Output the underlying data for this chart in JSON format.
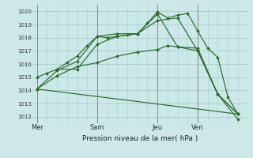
{
  "title": "",
  "xlabel": "Pression niveau de la mer( hPa )",
  "background_color": "#cce8e8",
  "grid_color": "#aacccc",
  "vline_color": "#888888",
  "line_color": "#2d6a2d",
  "ylim": [
    1011.5,
    1020.5
  ],
  "yticks": [
    1012,
    1013,
    1014,
    1015,
    1016,
    1017,
    1018,
    1019,
    1020
  ],
  "xlim": [
    -0.2,
    10.5
  ],
  "xtick_labels": [
    "Mer",
    "Sam",
    "Jeu",
    "Ven"
  ],
  "xtick_positions": [
    0,
    3,
    6,
    8
  ],
  "vline_positions": [
    0,
    3,
    6,
    8
  ],
  "series": [
    {
      "x": [
        0,
        0.5,
        1.0,
        1.5,
        2.0,
        2.5,
        3.0,
        3.5,
        4.0,
        4.5,
        5.0,
        5.5,
        6.0,
        6.5,
        7.0,
        7.5,
        8.0,
        8.5,
        9.0,
        9.5,
        10.0
      ],
      "y": [
        1015.0,
        1015.3,
        1015.6,
        1016.1,
        1016.6,
        1017.4,
        1018.1,
        1018.0,
        1018.1,
        1018.2,
        1018.3,
        1019.1,
        1019.95,
        1019.5,
        1019.7,
        1019.85,
        1018.5,
        1017.2,
        1016.5,
        1013.5,
        1012.2
      ]
    },
    {
      "x": [
        0,
        1.0,
        2.0,
        3.0,
        4.0,
        5.0,
        6.0,
        6.5,
        7.0,
        8.0,
        9.0,
        10.0
      ],
      "y": [
        1014.1,
        1015.1,
        1015.8,
        1016.1,
        1016.6,
        1016.9,
        1017.1,
        1017.4,
        1017.3,
        1017.2,
        1013.7,
        1011.8
      ]
    },
    {
      "x": [
        0,
        1.0,
        2.0,
        3.0,
        4.0,
        5.0,
        6.0,
        7.0,
        8.0,
        9.0,
        10.0
      ],
      "y": [
        1014.1,
        1015.5,
        1016.2,
        1018.1,
        1018.3,
        1018.3,
        1019.3,
        1019.5,
        1017.0,
        1013.7,
        1012.2
      ]
    },
    {
      "x": [
        0,
        10.0
      ],
      "y": [
        1014.1,
        1012.2
      ]
    },
    {
      "x": [
        1,
        2,
        3,
        4,
        5,
        6,
        7,
        8,
        9,
        10
      ],
      "y": [
        1015.6,
        1015.6,
        1017.5,
        1018.1,
        1018.3,
        1019.8,
        1017.3,
        1017.0,
        1013.7,
        1012.2
      ]
    }
  ]
}
